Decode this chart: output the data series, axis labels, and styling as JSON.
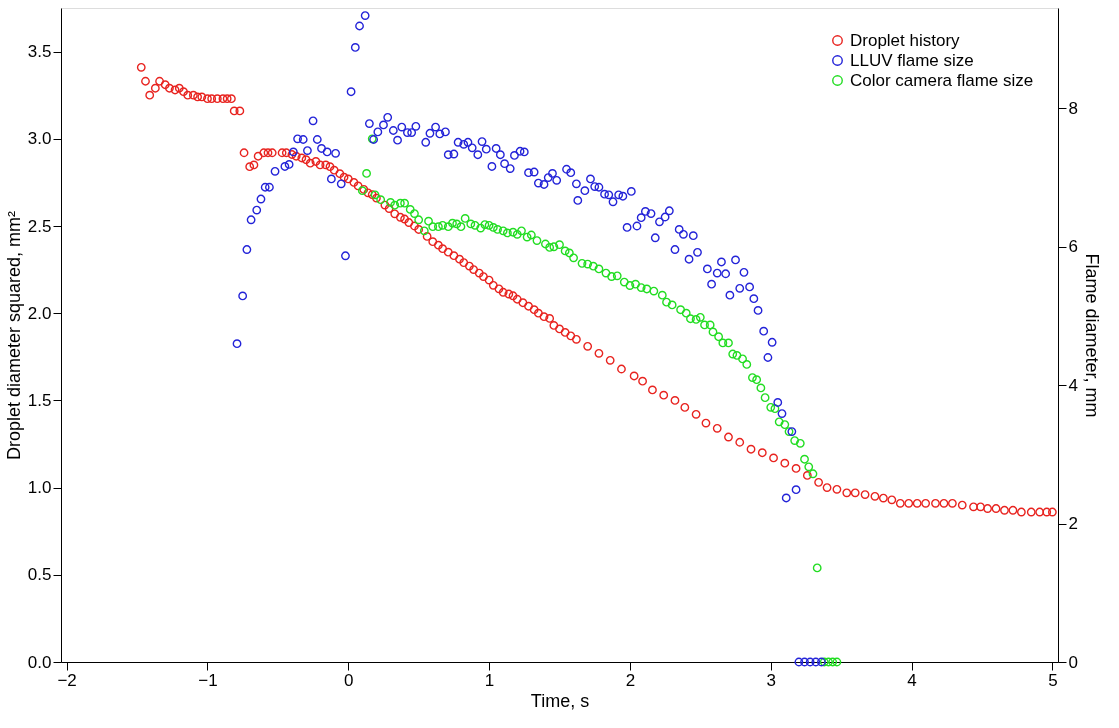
{
  "chart_data": {
    "type": "scatter",
    "xlabel": "Time, s",
    "ylabel": "Droplet diameter squared, mm²",
    "y2label": "Flame diameter, mm",
    "xlim": [
      -2.04,
      5.04
    ],
    "xticks": [
      -2,
      -1,
      0,
      1,
      2,
      3,
      4,
      5
    ],
    "ylim": [
      0,
      3.75
    ],
    "yticks": [
      {
        "value": 0,
        "label": "0.0"
      },
      {
        "value": 0.5,
        "label": "0.5"
      },
      {
        "value": 1,
        "label": "1.0"
      },
      {
        "value": 1.5,
        "label": "1.5"
      },
      {
        "value": 2,
        "label": "2.0"
      },
      {
        "value": 2.5,
        "label": "2.5"
      },
      {
        "value": 3,
        "label": "3.0"
      },
      {
        "value": 3.5,
        "label": "3.5"
      }
    ],
    "y2lim": [
      0,
      9.45
    ],
    "y2ticks": [
      0,
      2,
      4,
      6,
      8
    ],
    "grid": false,
    "legend": "top right",
    "marker": "circle",
    "series": [
      {
        "name": "Droplet history",
        "color": "#e8231f",
        "x": [
          -1.47,
          -1.44,
          -1.41,
          -1.37,
          -1.34,
          -1.3,
          -1.27,
          -1.23,
          -1.2,
          -1.17,
          -1.14,
          -1.1,
          -1.07,
          -1.04,
          -1.0,
          -0.97,
          -0.93,
          -0.89,
          -0.86,
          -0.83,
          -0.81,
          -0.77,
          -0.74,
          -0.7,
          -0.67,
          -0.64,
          -0.6,
          -0.57,
          -0.54,
          -0.47,
          -0.44,
          -0.4,
          -0.37,
          -0.33,
          -0.3,
          -0.27,
          -0.23,
          -0.2,
          -0.16,
          -0.13,
          -0.1,
          -0.06,
          -0.03,
          0.0,
          0.04,
          0.07,
          0.11,
          0.14,
          0.17,
          0.2,
          0.26,
          0.29,
          0.33,
          0.37,
          0.4,
          0.43,
          0.47,
          0.5,
          0.56,
          0.6,
          0.64,
          0.67,
          0.71,
          0.75,
          0.79,
          0.82,
          0.86,
          0.89,
          0.93,
          0.96,
          1.0,
          1.03,
          1.07,
          1.1,
          1.14,
          1.17,
          1.2,
          1.24,
          1.28,
          1.32,
          1.35,
          1.39,
          1.43,
          1.46,
          1.5,
          1.54,
          1.58,
          1.62,
          1.7,
          1.78,
          1.86,
          1.94,
          2.03,
          2.09,
          2.16,
          2.24,
          2.32,
          2.39,
          2.47,
          2.54,
          2.62,
          2.7,
          2.78,
          2.86,
          2.94,
          3.02,
          3.1,
          3.18,
          3.26,
          3.34,
          3.4,
          3.47,
          3.54,
          3.6,
          3.67,
          3.74,
          3.8,
          3.86,
          3.92,
          3.98,
          4.04,
          4.1,
          4.17,
          4.23,
          4.29,
          4.36,
          4.44,
          4.49,
          4.54,
          4.6,
          4.66,
          4.72,
          4.78,
          4.85,
          4.91,
          4.96,
          5.0
        ],
        "values": [
          3.41,
          3.33,
          3.25,
          3.29,
          3.33,
          3.31,
          3.29,
          3.28,
          3.29,
          3.27,
          3.25,
          3.25,
          3.24,
          3.24,
          3.23,
          3.23,
          3.23,
          3.23,
          3.23,
          3.23,
          3.16,
          3.16,
          2.92,
          2.84,
          2.85,
          2.9,
          2.92,
          2.92,
          2.92,
          2.92,
          2.92,
          2.91,
          2.9,
          2.89,
          2.88,
          2.86,
          2.87,
          2.85,
          2.85,
          2.84,
          2.82,
          2.8,
          2.78,
          2.77,
          2.75,
          2.73,
          2.71,
          2.69,
          2.68,
          2.66,
          2.62,
          2.6,
          2.57,
          2.55,
          2.54,
          2.52,
          2.5,
          2.48,
          2.44,
          2.41,
          2.39,
          2.37,
          2.35,
          2.33,
          2.31,
          2.29,
          2.27,
          2.25,
          2.23,
          2.21,
          2.19,
          2.16,
          2.14,
          2.12,
          2.11,
          2.1,
          2.08,
          2.06,
          2.04,
          2.02,
          2.0,
          1.98,
          1.97,
          1.93,
          1.91,
          1.89,
          1.87,
          1.85,
          1.81,
          1.77,
          1.73,
          1.68,
          1.64,
          1.61,
          1.56,
          1.53,
          1.5,
          1.46,
          1.42,
          1.37,
          1.34,
          1.29,
          1.26,
          1.22,
          1.2,
          1.17,
          1.14,
          1.11,
          1.07,
          1.03,
          1.0,
          0.99,
          0.97,
          0.97,
          0.96,
          0.95,
          0.94,
          0.93,
          0.91,
          0.91,
          0.91,
          0.91,
          0.91,
          0.91,
          0.91,
          0.9,
          0.89,
          0.89,
          0.88,
          0.88,
          0.87,
          0.87,
          0.86,
          0.86,
          0.86,
          0.86,
          0.86
        ]
      },
      {
        "name": "LLUV flame size",
        "color": "#2323d8",
        "axis": "y2",
        "x": [
          -0.79,
          -0.75,
          -0.72,
          -0.69,
          -0.65,
          -0.62,
          -0.59,
          -0.56,
          -0.52,
          -0.45,
          -0.42,
          -0.39,
          -0.36,
          -0.32,
          -0.29,
          -0.25,
          -0.22,
          -0.19,
          -0.15,
          -0.12,
          -0.09,
          -0.05,
          -0.02,
          0.02,
          0.05,
          0.08,
          0.12,
          0.15,
          0.18,
          0.21,
          0.25,
          0.28,
          0.32,
          0.35,
          0.38,
          0.42,
          0.45,
          0.48,
          0.55,
          0.58,
          0.62,
          0.65,
          0.69,
          0.71,
          0.75,
          0.78,
          0.82,
          0.85,
          0.88,
          0.92,
          0.95,
          0.98,
          1.02,
          1.05,
          1.08,
          1.11,
          1.15,
          1.18,
          1.22,
          1.25,
          1.28,
          1.32,
          1.35,
          1.39,
          1.42,
          1.45,
          1.48,
          1.55,
          1.58,
          1.62,
          1.63,
          1.68,
          1.72,
          1.75,
          1.78,
          1.82,
          1.85,
          1.88,
          1.92,
          1.95,
          1.98,
          2.01,
          2.05,
          2.08,
          2.11,
          2.15,
          2.18,
          2.21,
          2.25,
          2.28,
          2.32,
          2.35,
          2.38,
          2.42,
          2.45,
          2.48,
          2.55,
          2.58,
          2.62,
          2.65,
          2.68,
          2.71,
          2.75,
          2.78,
          2.81,
          2.85,
          2.88,
          2.91,
          2.95,
          2.98,
          3.01,
          3.05,
          3.08,
          3.11,
          3.15,
          3.18,
          3.2,
          3.24,
          3.28,
          3.32,
          3.36
        ],
        "values": [
          4.6,
          5.29,
          5.96,
          6.39,
          6.53,
          6.69,
          6.86,
          6.86,
          7.09,
          7.16,
          7.19,
          7.37,
          7.56,
          7.55,
          7.39,
          7.82,
          7.55,
          7.42,
          7.37,
          6.98,
          7.35,
          6.91,
          5.87,
          8.24,
          8.88,
          9.19,
          9.34,
          7.78,
          7.55,
          7.66,
          7.76,
          7.87,
          7.68,
          7.54,
          7.73,
          7.65,
          7.65,
          7.74,
          7.51,
          7.64,
          7.73,
          7.63,
          7.66,
          7.33,
          7.34,
          7.51,
          7.48,
          7.51,
          7.43,
          7.33,
          7.52,
          7.41,
          7.16,
          7.42,
          7.33,
          7.2,
          7.13,
          7.32,
          7.38,
          7.37,
          7.07,
          7.08,
          6.92,
          6.9,
          7.0,
          7.06,
          6.96,
          7.12,
          7.07,
          6.91,
          6.67,
          6.81,
          6.98,
          6.87,
          6.86,
          6.76,
          6.75,
          6.65,
          6.75,
          6.73,
          6.28,
          6.8,
          6.3,
          6.42,
          6.51,
          6.48,
          6.13,
          6.36,
          6.43,
          6.52,
          5.96,
          6.25,
          6.18,
          5.82,
          6.16,
          5.92,
          5.68,
          5.46,
          5.62,
          5.78,
          5.61,
          5.3,
          5.81,
          5.4,
          5.63,
          5.42,
          5.25,
          5.08,
          4.78,
          4.4,
          4.62,
          3.75,
          3.59,
          2.37,
          3.33,
          2.49,
          0,
          0,
          0,
          0,
          0
        ]
      },
      {
        "name": "Color camera flame size",
        "color": "#22dd22",
        "axis": "y2",
        "x": [
          0.1,
          0.13,
          0.17,
          0.19,
          0.23,
          0.3,
          0.33,
          0.37,
          0.4,
          0.44,
          0.47,
          0.5,
          0.54,
          0.57,
          0.6,
          0.64,
          0.67,
          0.71,
          0.74,
          0.77,
          0.8,
          0.83,
          0.87,
          0.9,
          0.94,
          0.97,
          1.0,
          1.03,
          1.06,
          1.1,
          1.13,
          1.17,
          1.2,
          1.23,
          1.27,
          1.3,
          1.34,
          1.4,
          1.43,
          1.46,
          1.5,
          1.54,
          1.57,
          1.6,
          1.66,
          1.7,
          1.74,
          1.78,
          1.83,
          1.87,
          1.91,
          1.96,
          2.0,
          2.04,
          2.08,
          2.12,
          2.17,
          2.23,
          2.26,
          2.3,
          2.36,
          2.4,
          2.43,
          2.47,
          2.5,
          2.53,
          2.57,
          2.59,
          2.63,
          2.66,
          2.7,
          2.73,
          2.76,
          2.8,
          2.83,
          2.87,
          2.9,
          2.93,
          2.96,
          3.0,
          3.03,
          3.06,
          3.1,
          3.13,
          3.17,
          3.21,
          3.24,
          3.27,
          3.3,
          3.33,
          3.38,
          3.41,
          3.44,
          3.47
        ],
        "values": [
          6.81,
          7.06,
          7.56,
          6.75,
          6.68,
          6.64,
          6.6,
          6.63,
          6.63,
          6.54,
          6.48,
          6.39,
          6.23,
          6.37,
          6.29,
          6.29,
          6.31,
          6.29,
          6.34,
          6.33,
          6.29,
          6.41,
          6.33,
          6.31,
          6.27,
          6.32,
          6.31,
          6.28,
          6.25,
          6.23,
          6.2,
          6.21,
          6.18,
          6.23,
          6.14,
          6.17,
          6.09,
          6.04,
          5.99,
          6.0,
          6.03,
          5.94,
          5.91,
          5.84,
          5.76,
          5.75,
          5.72,
          5.68,
          5.62,
          5.57,
          5.58,
          5.49,
          5.44,
          5.46,
          5.41,
          5.39,
          5.36,
          5.3,
          5.2,
          5.16,
          5.09,
          5.04,
          4.96,
          4.95,
          4.98,
          4.87,
          4.87,
          4.77,
          4.7,
          4.61,
          4.61,
          4.45,
          4.43,
          4.38,
          4.3,
          4.11,
          4.08,
          3.96,
          3.82,
          3.68,
          3.66,
          3.47,
          3.43,
          3.33,
          3.2,
          3.16,
          2.93,
          2.82,
          2.72,
          1.36,
          0,
          0,
          0,
          0
        ]
      }
    ]
  }
}
